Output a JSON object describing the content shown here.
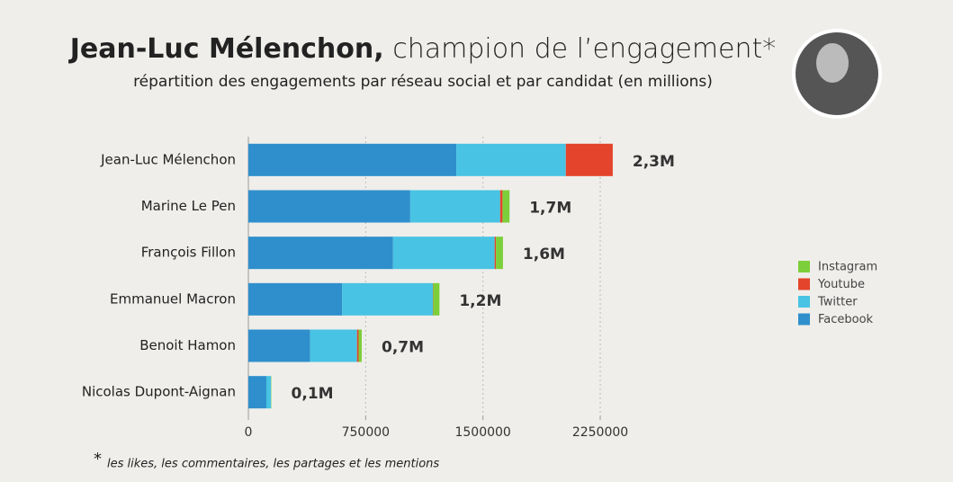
{
  "chart_data": {
    "type": "stacked_barh",
    "title_bold": "Jean-Luc Mélenchon,",
    "title_rest": " champion de l’engagement*",
    "subtitle": "répartition des engagements par réseau social et par candidat (en millions)",
    "footnote_mark": "*",
    "footnote": "les likes, les commentaires, les partages et les mentions",
    "categories": [
      "Jean-Luc Mélenchon",
      "Marine Le Pen",
      "François Fillon",
      "Emmanuel Macron",
      "Benoit Hamon",
      "Nicolas Dupont-Aignan"
    ],
    "series": [
      {
        "name": "Facebook",
        "color": "#2f8fcc",
        "values": [
          1330000,
          1035000,
          925000,
          600000,
          395000,
          115000
        ]
      },
      {
        "name": "Twitter",
        "color": "#48c3e3",
        "values": [
          700000,
          575000,
          650000,
          580000,
          300000,
          30000
        ]
      },
      {
        "name": "Youtube",
        "color": "#e4442b",
        "values": [
          300000,
          15000,
          8000,
          2000,
          10000,
          0
        ]
      },
      {
        "name": "Instagram",
        "color": "#7ccf3a",
        "values": [
          0,
          45000,
          45000,
          40000,
          20000,
          2000
        ]
      }
    ],
    "total_labels": [
      "2,3M",
      "1,7M",
      "1,6M",
      "1,2M",
      "0,7M",
      "0,1M"
    ],
    "xlim": [
      0,
      2250000
    ],
    "xticks": [
      0,
      750000,
      1500000,
      2250000
    ],
    "grid": true
  }
}
